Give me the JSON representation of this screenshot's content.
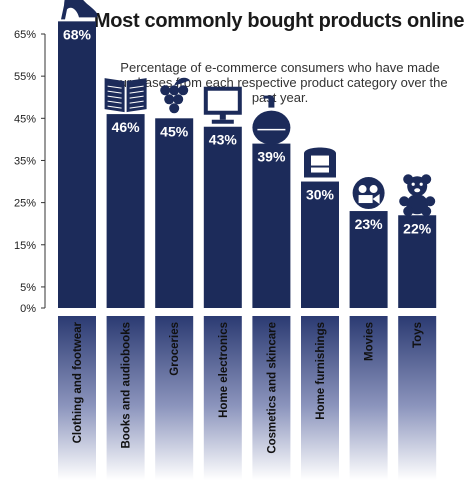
{
  "chart_data": {
    "type": "bar",
    "title": "Most commonly bought products online",
    "subtitle": "Percentage of e-commerce consumers who have made purchases from each respective product category over the past year.",
    "categories": [
      "Clothing and footwear",
      "Books and audiobooks",
      "Groceries",
      "Home electronics",
      "Cosmetics and skincare",
      "Home furnishings",
      "Movies",
      "Toys"
    ],
    "values": [
      68,
      46,
      45,
      43,
      39,
      30,
      23,
      22
    ],
    "value_labels": [
      "68%",
      "46%",
      "45%",
      "43%",
      "39%",
      "30%",
      "23%",
      "22%"
    ],
    "yticks": [
      "0%",
      "5%",
      "15%",
      "25%",
      "35%",
      "45%",
      "55%",
      "65%"
    ],
    "ytick_values": [
      0,
      5,
      15,
      25,
      35,
      45,
      55,
      65
    ],
    "ylim": [
      0,
      65
    ],
    "icons": [
      "high-heel-shoe-icon",
      "open-book-icon",
      "grapes-icon",
      "monitor-icon",
      "cosmetics-jar-icon",
      "armchair-icon",
      "film-camera-icon",
      "teddy-bear-icon"
    ],
    "grid": false,
    "legend": "none",
    "colors": {
      "bar": "#1c2b5a",
      "label": "#ffffff",
      "axis": "#333333"
    }
  }
}
